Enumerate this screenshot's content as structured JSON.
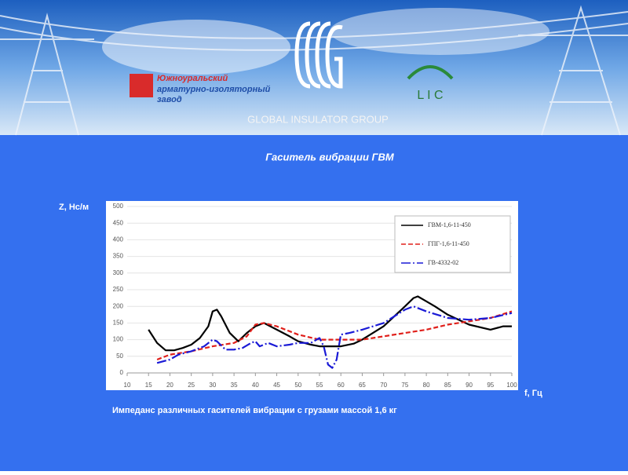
{
  "header": {
    "company_line1": "Южноуральский",
    "company_line2": "арматурно-изоляторный",
    "company_line3": "завод",
    "group": "GLOBAL INSULATOR GROUP",
    "lic": "L I C"
  },
  "chart_data": {
    "type": "line",
    "title": "Гаситель вибрации ГВМ",
    "y_label": "Z, Нс/м",
    "x_label": "f, Гц",
    "caption": "Импеданс различных гасителей вибрации с грузами массой 1,6 кг",
    "xlim": [
      10,
      100
    ],
    "xticks": [
      10,
      15,
      20,
      25,
      30,
      35,
      40,
      45,
      50,
      55,
      60,
      65,
      70,
      75,
      80,
      85,
      90,
      95,
      100
    ],
    "ylim": [
      0,
      500
    ],
    "yticks": [
      0,
      50,
      100,
      150,
      200,
      250,
      300,
      350,
      400,
      450,
      500
    ],
    "grid": true,
    "legend": "upper right",
    "series": [
      {
        "name": "ГВМ-1,6-11-450",
        "color": "#000000",
        "style": "solid",
        "x": [
          15,
          17,
          19,
          21,
          23,
          25,
          27,
          29,
          30,
          31,
          32,
          34,
          36,
          38,
          40,
          42,
          45,
          48,
          50,
          53,
          55,
          58,
          60,
          63,
          65,
          70,
          75,
          77,
          78,
          80,
          82,
          85,
          90,
          95,
          98,
          100
        ],
        "values": [
          130,
          90,
          68,
          68,
          75,
          85,
          105,
          140,
          185,
          190,
          170,
          120,
          95,
          120,
          140,
          150,
          130,
          110,
          95,
          85,
          80,
          80,
          80,
          88,
          100,
          140,
          200,
          225,
          230,
          215,
          200,
          175,
          145,
          130,
          140,
          140
        ]
      },
      {
        "name": "ГПГ-1,6-11-450",
        "color": "#e0201b",
        "style": "dashed",
        "x": [
          17,
          20,
          25,
          30,
          35,
          38,
          40,
          42,
          45,
          50,
          55,
          60,
          65,
          70,
          75,
          80,
          85,
          90,
          95,
          100
        ],
        "values": [
          40,
          55,
          65,
          80,
          90,
          110,
          145,
          150,
          140,
          115,
          100,
          100,
          100,
          110,
          120,
          130,
          145,
          155,
          165,
          185
        ]
      },
      {
        "name": "ГВ-4332-02",
        "color": "#1a1ad6",
        "style": "dashdot",
        "x": [
          17,
          20,
          22,
          25,
          28,
          30,
          31,
          33,
          35,
          37,
          39,
          40,
          41,
          43,
          45,
          48,
          50,
          53,
          55,
          56,
          57,
          58,
          59,
          60,
          62,
          65,
          70,
          75,
          77,
          80,
          85,
          90,
          95,
          100
        ],
        "values": [
          30,
          40,
          55,
          65,
          80,
          100,
          95,
          70,
          70,
          75,
          90,
          95,
          80,
          90,
          80,
          85,
          90,
          90,
          105,
          80,
          25,
          15,
          40,
          115,
          120,
          130,
          150,
          190,
          200,
          185,
          165,
          160,
          165,
          180
        ]
      }
    ]
  }
}
